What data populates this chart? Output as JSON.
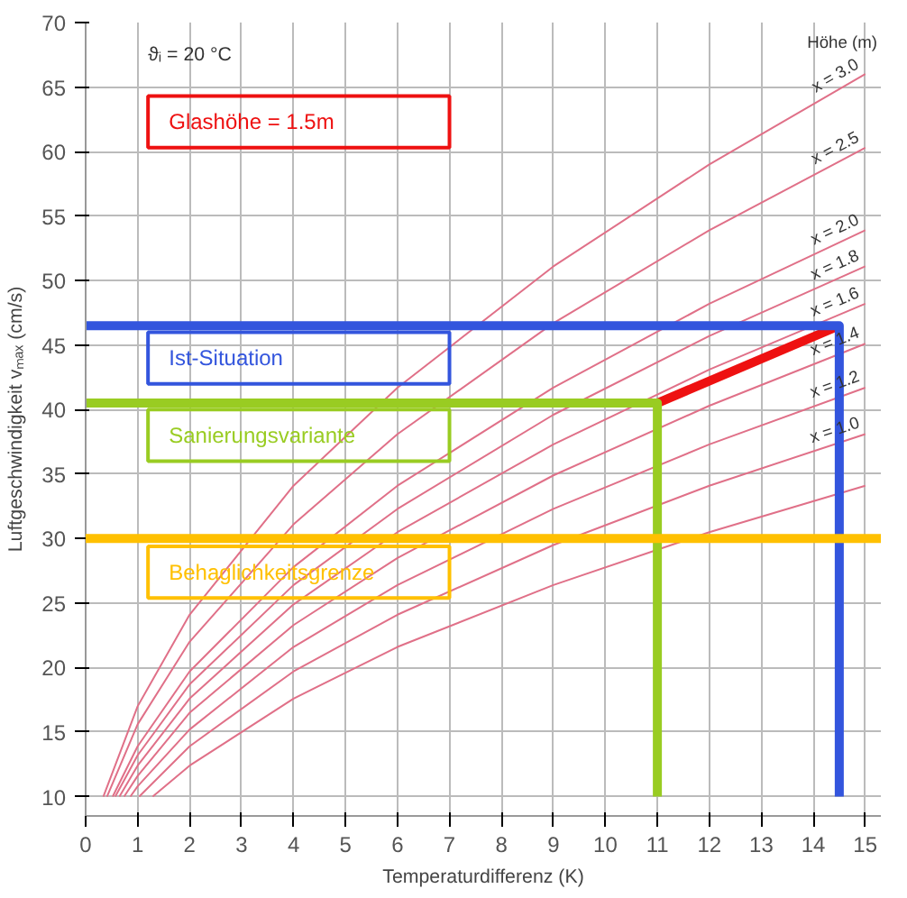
{
  "chart_data": {
    "type": "line",
    "xlabel": "Temperaturdifferenz (K)",
    "ylabel": "Luftgeschwindigkeit vₘₐₓ (cm/s)",
    "legend_title": "Höhe (m)",
    "annotations": [
      "ϑᵢ = 20 °C"
    ],
    "xlim": [
      0,
      15.3
    ],
    "ylim": [
      8.5,
      70
    ],
    "xticks": [
      0,
      1,
      2,
      3,
      4,
      5,
      6,
      7,
      8,
      9,
      10,
      11,
      12,
      13,
      14,
      15
    ],
    "yticks": [
      10,
      15,
      20,
      25,
      30,
      35,
      40,
      45,
      50,
      55,
      60,
      65,
      70
    ],
    "grid": true,
    "series": [
      {
        "name": "x = 3.0",
        "color": "#e07088",
        "x": [
          0.34,
          1,
          2,
          4,
          6,
          9,
          12,
          15
        ],
        "values": [
          10,
          17.0,
          24.1,
          34.1,
          41.7,
          51.1,
          59.0,
          66.0
        ]
      },
      {
        "name": "x = 2.5",
        "color": "#e07088",
        "x": [
          0.41,
          1,
          2,
          4,
          6,
          9,
          12,
          15
        ],
        "values": [
          10,
          15.6,
          22.0,
          31.1,
          38.1,
          46.7,
          53.9,
          60.3
        ]
      },
      {
        "name": "x = 2.0",
        "color": "#e07088",
        "x": [
          0.52,
          1,
          2,
          4,
          6,
          9,
          12,
          15
        ],
        "values": [
          10,
          13.9,
          19.7,
          27.8,
          34.1,
          41.7,
          48.2,
          53.9
        ]
      },
      {
        "name": "x = 1.8",
        "color": "#e07088",
        "x": [
          0.57,
          1,
          2,
          4,
          6,
          9,
          12,
          15
        ],
        "values": [
          10,
          13.2,
          18.7,
          26.4,
          32.3,
          39.6,
          45.7,
          51.1
        ]
      },
      {
        "name": "x = 1.6",
        "color": "#e07088",
        "x": [
          0.65,
          1,
          2,
          4,
          6,
          9,
          12,
          15
        ],
        "values": [
          10,
          12.4,
          17.6,
          24.9,
          30.5,
          37.3,
          43.1,
          48.2
        ]
      },
      {
        "name": "x = 1.4",
        "color": "#e07088",
        "x": [
          0.74,
          1,
          2,
          4,
          6,
          9,
          12,
          15
        ],
        "values": [
          10,
          11.6,
          16.5,
          23.3,
          28.5,
          34.9,
          40.3,
          45.1
        ]
      },
      {
        "name": "x = 1.2",
        "color": "#e07088",
        "x": [
          0.86,
          1,
          2,
          4,
          6,
          9,
          12,
          15
        ],
        "values": [
          10,
          10.8,
          15.2,
          21.6,
          26.4,
          32.3,
          37.3,
          41.7
        ]
      },
      {
        "name": "x = 1.0",
        "color": "#e07088",
        "x": [
          1.03,
          2,
          4,
          6,
          9,
          12,
          15
        ],
        "values": [
          10,
          13.9,
          19.7,
          24.1,
          29.5,
          34.1,
          38.1
        ]
      },
      {
        "color": "#e07088",
        "x": [
          1.29,
          2,
          4,
          6,
          9,
          12,
          15
        ],
        "values": [
          10,
          12.4,
          17.6,
          21.6,
          26.4,
          30.5,
          34.1
        ]
      },
      {
        "name": "Glashöhe = 1.5m",
        "color": "#ee1111",
        "x": [
          11,
          14.5
        ],
        "values": [
          40.5,
          46.5
        ]
      },
      {
        "name": "Ist-Situation",
        "color": "#3355dd",
        "x": [
          0,
          14.5,
          14.5
        ],
        "values": [
          46.5,
          46.5,
          10
        ]
      },
      {
        "name": "Sanierungsvariante",
        "color": "#99cc22",
        "x": [
          0,
          11,
          11
        ],
        "values": [
          40.5,
          40.5,
          10
        ]
      }
    ],
    "ref_lines": [
      {
        "axis": "y",
        "value": 30,
        "label": "Behaglichkeitsgrenze",
        "color": "#ffc000"
      }
    ]
  }
}
